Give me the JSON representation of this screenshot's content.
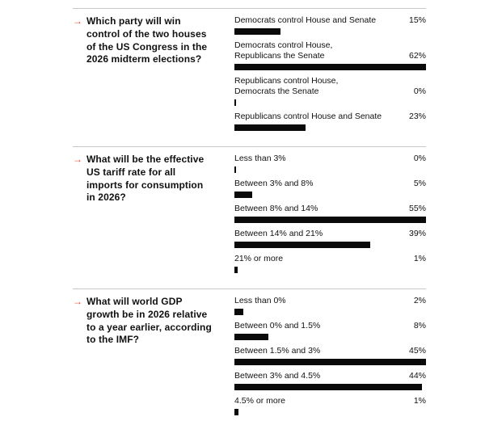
{
  "styles": {
    "accent": "#e2422e",
    "bar_color": "#0a0a0a",
    "divider_color": "#c9c9c9",
    "background": "#ffffff"
  },
  "arrow_icon": "→",
  "chart_data": [
    {
      "type": "bar",
      "orientation": "horizontal",
      "title": "Which party will win control of the two houses of the US Congress in the 2026 midterm elections?",
      "categories": [
        "Democrats control House and Senate",
        "Democrats control House, Republicans the Senate",
        "Republicans control House, Democrats the Senate",
        "Republicans control House and Senate"
      ],
      "category_lines": [
        [
          "Democrats control House and Senate"
        ],
        [
          "Democrats control House,",
          "Republicans the Senate"
        ],
        [
          "Republicans control House,",
          "Democrats the Senate"
        ],
        [
          "Republicans control House and Senate"
        ]
      ],
      "values": [
        15,
        62,
        0,
        23
      ],
      "value_labels": [
        "15%",
        "62%",
        "0%",
        "23%"
      ],
      "xlim": [
        0,
        62
      ],
      "legend": "none",
      "grid": false
    },
    {
      "type": "bar",
      "orientation": "horizontal",
      "title": "What will be the effective US tariff rate for all imports for consumption in 2026?",
      "categories": [
        "Less than 3%",
        "Between 3% and 8%",
        "Between 8% and 14%",
        "Between 14% and 21%",
        "21% or more"
      ],
      "category_lines": [
        [
          "Less than 3%"
        ],
        [
          "Between 3% and 8%"
        ],
        [
          "Between 8% and 14%"
        ],
        [
          "Between 14% and 21%"
        ],
        [
          "21% or more"
        ]
      ],
      "values": [
        0,
        5,
        55,
        39,
        1
      ],
      "value_labels": [
        "0%",
        "5%",
        "55%",
        "39%",
        "1%"
      ],
      "xlim": [
        0,
        55
      ],
      "legend": "none",
      "grid": false
    },
    {
      "type": "bar",
      "orientation": "horizontal",
      "title": "What will world GDP growth be in 2026 relative to a year earlier, according to the IMF?",
      "categories": [
        "Less than 0%",
        "Between 0% and 1.5%",
        "Between 1.5% and 3%",
        "Between 3% and 4.5%",
        "4.5% or more"
      ],
      "category_lines": [
        [
          "Less than 0%"
        ],
        [
          "Between 0% and 1.5%"
        ],
        [
          "Between 1.5% and 3%"
        ],
        [
          "Between 3% and 4.5%"
        ],
        [
          "4.5% or more"
        ]
      ],
      "values": [
        2,
        8,
        45,
        44,
        1
      ],
      "value_labels": [
        "2%",
        "8%",
        "45%",
        "44%",
        "1%"
      ],
      "xlim": [
        0,
        45
      ],
      "legend": "none",
      "grid": false
    }
  ]
}
